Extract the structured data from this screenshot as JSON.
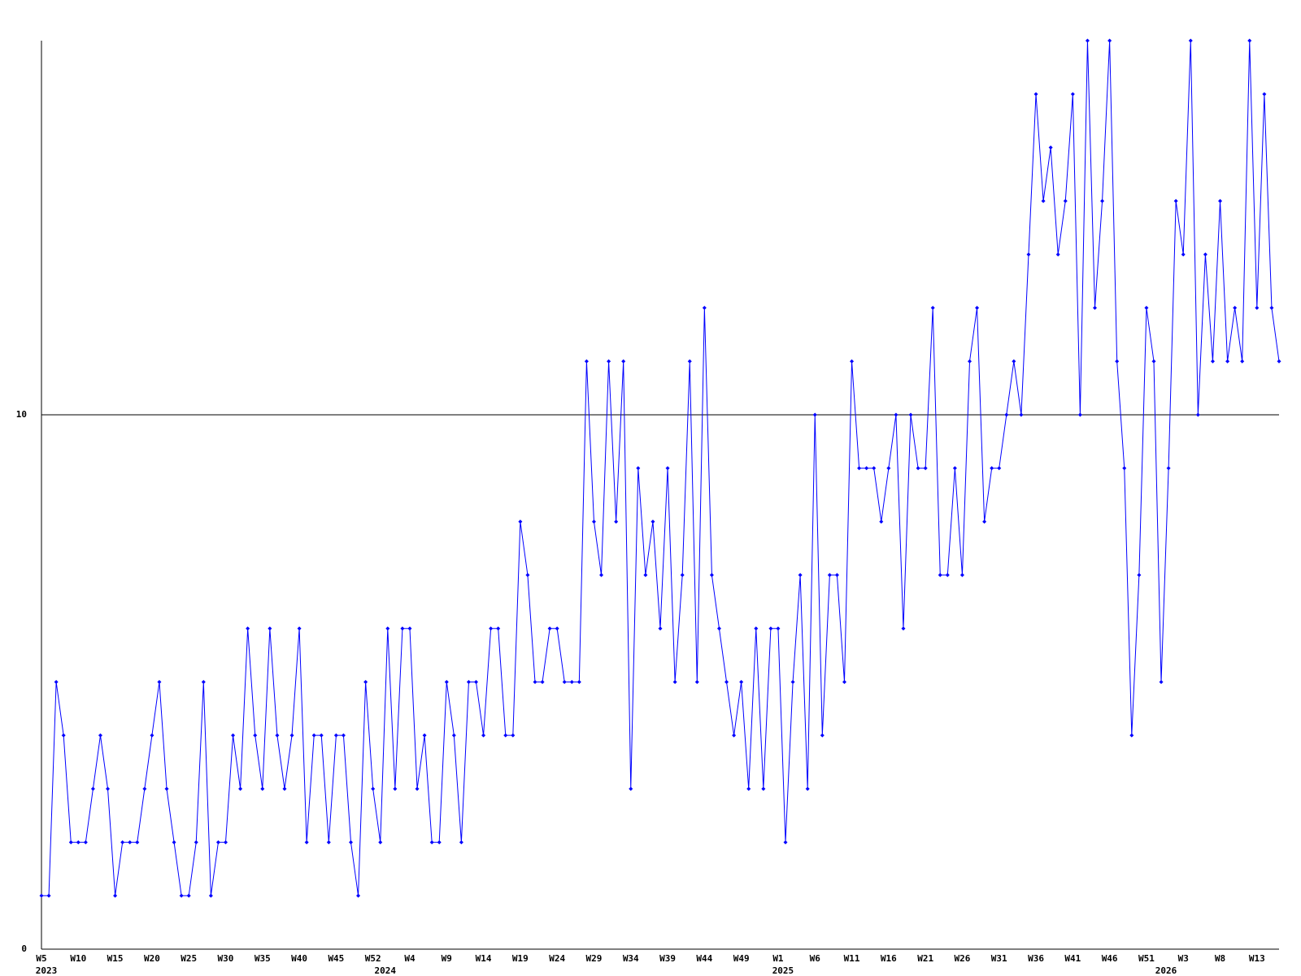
{
  "chart_data": {
    "type": "line",
    "color": "#0000ff",
    "categories": [
      "W5",
      null,
      null,
      null,
      null,
      "W10",
      null,
      null,
      null,
      null,
      "W15",
      null,
      null,
      null,
      null,
      "W20",
      null,
      null,
      null,
      null,
      "W25",
      null,
      null,
      null,
      null,
      "W30",
      null,
      null,
      null,
      null,
      "W35",
      null,
      null,
      null,
      null,
      "W40",
      null,
      null,
      null,
      null,
      "W45",
      null,
      null,
      null,
      null,
      "W52",
      null,
      null,
      null,
      null,
      "W4",
      null,
      null,
      null,
      null,
      "W9",
      null,
      null,
      null,
      null,
      "W14",
      null,
      null,
      null,
      null,
      "W19",
      null,
      null,
      null,
      null,
      "W24",
      null,
      null,
      null,
      null,
      "W29",
      null,
      null,
      null,
      null,
      "W34",
      null,
      null,
      null,
      null,
      "W39",
      null,
      null,
      null,
      null,
      "W44",
      null,
      null,
      null,
      null,
      "W49",
      null,
      null,
      null,
      null,
      "W1",
      null,
      null,
      null,
      null,
      "W6",
      null,
      null,
      null,
      null,
      "W11",
      null,
      null,
      null,
      null,
      "W16",
      null,
      null,
      null,
      null,
      "W21",
      null,
      null,
      null,
      null,
      "W26",
      null,
      null,
      null,
      null,
      "W31",
      null,
      null,
      null,
      null,
      "W36",
      null,
      null,
      null,
      null,
      "W41",
      null,
      null,
      null,
      null,
      "W46",
      null,
      null,
      null,
      null,
      "W51",
      null,
      null,
      null,
      null,
      "W3",
      null,
      null,
      null,
      null,
      "W8",
      null,
      null,
      null,
      null,
      "W13",
      null,
      null,
      null
    ],
    "years": [
      "2023",
      null,
      null,
      null,
      null,
      null,
      null,
      null,
      null,
      null,
      null,
      null,
      null,
      null,
      null,
      null,
      null,
      null,
      null,
      null,
      null,
      null,
      null,
      null,
      null,
      null,
      null,
      null,
      null,
      null,
      null,
      null,
      null,
      null,
      null,
      null,
      null,
      null,
      null,
      null,
      null,
      null,
      null,
      null,
      null,
      null,
      "2024",
      null,
      null,
      null,
      null,
      null,
      null,
      null,
      null,
      null,
      null,
      null,
      null,
      null,
      null,
      null,
      null,
      null,
      null,
      null,
      null,
      null,
      null,
      null,
      null,
      null,
      null,
      null,
      null,
      null,
      null,
      null,
      null,
      null,
      null,
      null,
      null,
      null,
      null,
      null,
      null,
      null,
      null,
      null,
      null,
      null,
      null,
      null,
      null,
      null,
      null,
      null,
      null,
      null,
      "2025",
      null,
      null,
      null,
      null,
      null,
      null,
      null,
      null,
      null,
      null,
      null,
      null,
      null,
      null,
      null,
      null,
      null,
      null,
      null,
      null,
      null,
      null,
      null,
      null,
      null,
      null,
      null,
      null,
      null,
      null,
      null,
      null,
      null,
      null,
      null,
      null,
      null,
      null,
      null,
      null,
      null,
      null,
      null,
      null,
      null,
      null,
      null,
      null,
      null,
      null,
      null,
      "2026",
      null,
      null,
      null,
      null,
      null,
      null,
      null,
      null,
      null,
      null,
      null,
      null,
      null,
      null,
      null,
      null
    ],
    "values": [
      1,
      1,
      5,
      4,
      2,
      2,
      2,
      3,
      4,
      3,
      1,
      2,
      2,
      2,
      3,
      4,
      5,
      3,
      2,
      1,
      1,
      2,
      5,
      1,
      2,
      2,
      4,
      3,
      6,
      4,
      3,
      6,
      4,
      3,
      4,
      6,
      2,
      4,
      4,
      2,
      4,
      4,
      2,
      1,
      5,
      3,
      2,
      6,
      3,
      6,
      6,
      3,
      4,
      2,
      2,
      5,
      4,
      2,
      5,
      5,
      4,
      6,
      6,
      4,
      4,
      8,
      7,
      5,
      5,
      6,
      6,
      5,
      5,
      5,
      11,
      8,
      7,
      11,
      8,
      11,
      3,
      9,
      7,
      8,
      6,
      9,
      5,
      7,
      11,
      5,
      12,
      7,
      6,
      5,
      4,
      5,
      3,
      6,
      3,
      6,
      6,
      2,
      5,
      7,
      3,
      10,
      4,
      7,
      7,
      5,
      11,
      9,
      9,
      9,
      8,
      9,
      10,
      6,
      10,
      9,
      9,
      12,
      7,
      7,
      9,
      7,
      11,
      12,
      8,
      9,
      9,
      10,
      11,
      10,
      13,
      16,
      14,
      15,
      13,
      14,
      16,
      10,
      17,
      12,
      14,
      17,
      11,
      9,
      4,
      7,
      12,
      11,
      5,
      9,
      14,
      13,
      17,
      10,
      13,
      11,
      14,
      11,
      12,
      11,
      17,
      12,
      16,
      12,
      11
    ],
    "ylim": [
      0,
      17
    ],
    "yticks": [
      0,
      10
    ],
    "grid": true
  }
}
